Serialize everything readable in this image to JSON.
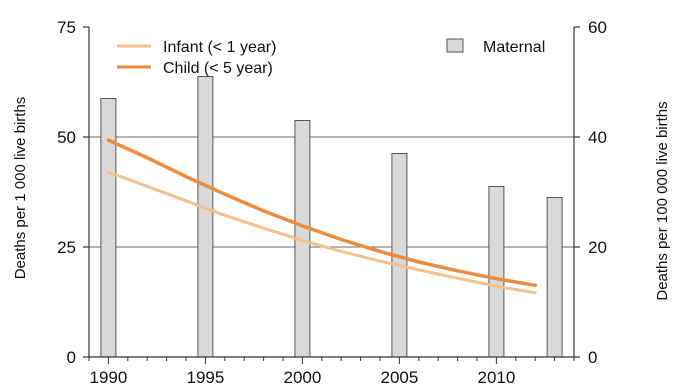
{
  "chart_data": {
    "type": "bar+line",
    "title": "",
    "x_axis": {
      "min": 1989,
      "max": 2014,
      "ticks": [
        1990,
        1995,
        2000,
        2005,
        2010
      ],
      "tick_labels": [
        "1990",
        "1995",
        "2000",
        "2005",
        "2010"
      ]
    },
    "y_axis_left": {
      "label": "Deaths per 1 000 live births",
      "min": 0,
      "max": 75,
      "ticks": [
        0,
        25,
        50,
        75
      ],
      "tick_labels": [
        "0",
        "25",
        "50",
        "75"
      ]
    },
    "y_axis_right": {
      "label": "Deaths per 100 000 live births",
      "min": 0,
      "max": 60,
      "ticks": [
        0,
        20,
        40,
        60
      ],
      "tick_labels": [
        "0",
        "20",
        "40",
        "60"
      ]
    },
    "grid": {
      "horizontal": true,
      "values_left_axis": [
        25,
        50
      ]
    },
    "legend_position": "top",
    "series": [
      {
        "name": "Infant (< 1 year)",
        "type": "line",
        "axis": "left",
        "color": "#f5c08f",
        "x": [
          1990,
          1992,
          1994,
          1996,
          1998,
          2000,
          2002,
          2004,
          2006,
          2008,
          2010,
          2012
        ],
        "y": [
          42.0,
          38.8,
          35.5,
          32.2,
          29.3,
          26.5,
          24.0,
          21.8,
          19.8,
          17.9,
          16.1,
          14.6
        ]
      },
      {
        "name": "Child (< 5 year)",
        "type": "line",
        "axis": "left",
        "color": "#ec8a3e",
        "x": [
          1990,
          1992,
          1994,
          1996,
          1998,
          2000,
          2002,
          2004,
          2006,
          2008,
          2010,
          2012
        ],
        "y": [
          49.3,
          45.3,
          41.0,
          37.0,
          33.2,
          29.8,
          26.7,
          24.0,
          21.6,
          19.6,
          17.8,
          16.3
        ]
      },
      {
        "name": "Maternal",
        "type": "bar",
        "axis": "right",
        "color": "#d9d9d9",
        "x": [
          1990,
          1995,
          2000,
          2005,
          2010,
          2013
        ],
        "y": [
          47,
          51,
          43,
          37,
          31,
          29
        ]
      }
    ]
  }
}
